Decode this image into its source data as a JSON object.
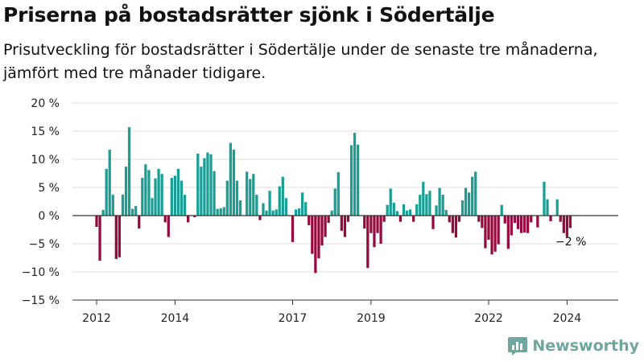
{
  "title": "Priserna på bostadsrätter sjönk i Södertälje",
  "subtitle": "Prisutveckling för bostadsrätter i Södertälje under de senaste tre månaderna, jämfört med tre månader tidigare.",
  "brand": "Newsworthy",
  "colors": {
    "positive": "#1a9e93",
    "negative": "#96093f",
    "grid": "#dddddd",
    "axis": "#333333",
    "brand": "#6fa7a0"
  },
  "chart_data": {
    "type": "bar",
    "title": "Priserna på bostadsrätter sjönk i Södertälje",
    "subtitle": "Prisutveckling för bostadsrätter i Södertälje under de senaste tre månaderna, jämfört med tre månader tidigare.",
    "xlabel": "",
    "ylabel": "",
    "ylim": [
      -15,
      20
    ],
    "yticks": [
      -15,
      -10,
      -5,
      0,
      5,
      10,
      15,
      20
    ],
    "ytick_labels": [
      "−15 %",
      "−10 %",
      "−5 %",
      "0 %",
      "5 %",
      "10 %",
      "15 %",
      "20 %"
    ],
    "xticks": [
      2012,
      2014,
      2017,
      2019,
      2022,
      2024
    ],
    "x_start": 2012.0,
    "x_step": 0.08333,
    "grid": true,
    "annotation": {
      "text": "−2 %",
      "value": -2
    },
    "series": [
      {
        "values": [
          -2,
          -8,
          1,
          8.3,
          11.7,
          3.7,
          -7.7,
          -7.4,
          3.7,
          8.7,
          15.7,
          1.2,
          1.7,
          -2.3,
          6.7,
          9.1,
          8.1,
          3.1,
          6.6,
          8.3,
          7.4,
          -1.2,
          -3.8,
          6.7,
          7.1,
          8.3,
          6.2,
          3.7,
          -1.2,
          0,
          -0.3,
          11,
          8.7,
          10.2,
          11.2,
          10.9,
          7.9,
          1.2,
          1.3,
          1.5,
          6.2,
          12.9,
          11.7,
          6.2,
          2.7,
          0,
          7.8,
          6.5,
          7.4,
          3.7,
          -0.8,
          2.2,
          0.9,
          4.4,
          0.9,
          1.1,
          5.2,
          6.9,
          3.1,
          0.1,
          -4.7,
          1.1,
          1.3,
          4.1,
          2.4,
          -1.7,
          -6.8,
          -10.2,
          -7.6,
          -5.3,
          -3.8,
          -1.3,
          0.9,
          4.8,
          7.7,
          -2.7,
          -3.8,
          -1.1,
          12.5,
          14.7,
          12.6,
          0,
          -2.3,
          -9.3,
          -3.1,
          -5.6,
          -3.1,
          -5,
          -1.1,
          1.9,
          4.8,
          2.3,
          0.8,
          -1.1,
          2,
          0.9,
          1.1,
          -1.1,
          2,
          3.7,
          6,
          3.8,
          4.4,
          -2.4,
          1.8,
          4.9,
          3.7,
          1,
          -1.2,
          -3.1,
          -3.9,
          -1.1,
          2.7,
          4.9,
          4.1,
          6.9,
          7.8,
          -1.1,
          -2.2,
          -5.8,
          -4.3,
          -6.9,
          -6.4,
          -5.1,
          1.9,
          -1.4,
          -5.9,
          -3.5,
          -1.3,
          -2.4,
          -3.1,
          -3,
          -3.1,
          -1.2,
          0,
          -2.1,
          0,
          6,
          2.9,
          -1,
          0,
          2.9,
          -1.1,
          -3.1,
          -3.8,
          -2.2
        ]
      }
    ]
  }
}
